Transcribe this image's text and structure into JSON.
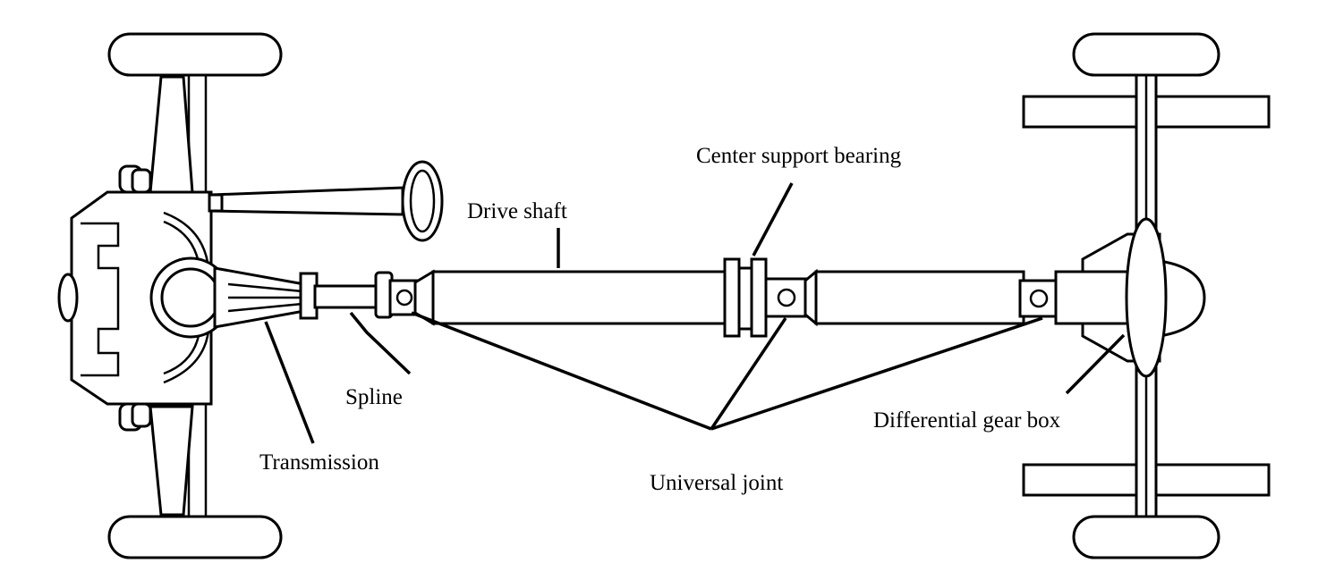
{
  "labels": {
    "center_support_bearing": "Center support bearing",
    "drive_shaft": "Drive shaft",
    "spline": "Spline",
    "transmission": "Transmission",
    "universal_joint": "Universal joint",
    "differential_gear_box": "Differential gear box"
  }
}
